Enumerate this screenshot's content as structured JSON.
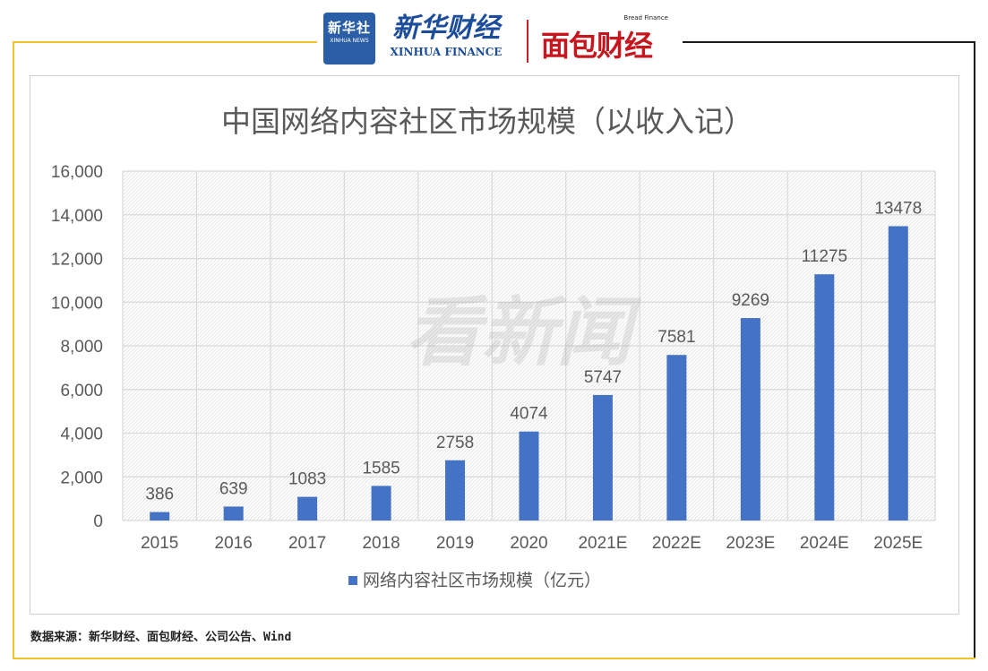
{
  "header": {
    "xinhuashe_cn": "新华社",
    "xinhuashe_en": "XINHUA NEWS",
    "xinhua_finance_cn": "新华财经",
    "xinhua_finance_en": "XINHUA FINANCE",
    "bread_finance_en": "Bread Finance",
    "bread_finance_cn": "面包财经"
  },
  "chart_data": {
    "type": "bar",
    "title": "中国网络内容社区市场规模（以收入记）",
    "categories": [
      "2015",
      "2016",
      "2017",
      "2018",
      "2019",
      "2020",
      "2021E",
      "2022E",
      "2023E",
      "2024E",
      "2025E"
    ],
    "series": [
      {
        "name": "网络内容社区市场规模（亿元）",
        "values": [
          386,
          639,
          1083,
          1585,
          2758,
          4074,
          5747,
          7581,
          9269,
          11275,
          13478
        ]
      }
    ],
    "ylim": [
      0,
      16000
    ],
    "yticks": [
      "0",
      "2,000",
      "4,000",
      "6,000",
      "8,000",
      "10,000",
      "12,000",
      "14,000",
      "16,000"
    ],
    "ytick_values": [
      0,
      2000,
      4000,
      6000,
      8000,
      10000,
      12000,
      14000,
      16000
    ],
    "grid": true,
    "legend": "bottom",
    "colors": {
      "bar": "#4472c4",
      "title": "#595959",
      "tick": "#595959",
      "grid": "#d9d9d9"
    },
    "watermark": "看新闻"
  },
  "footer": {
    "source": "数据来源：新华财经、面包财经、公司公告、Wind"
  }
}
